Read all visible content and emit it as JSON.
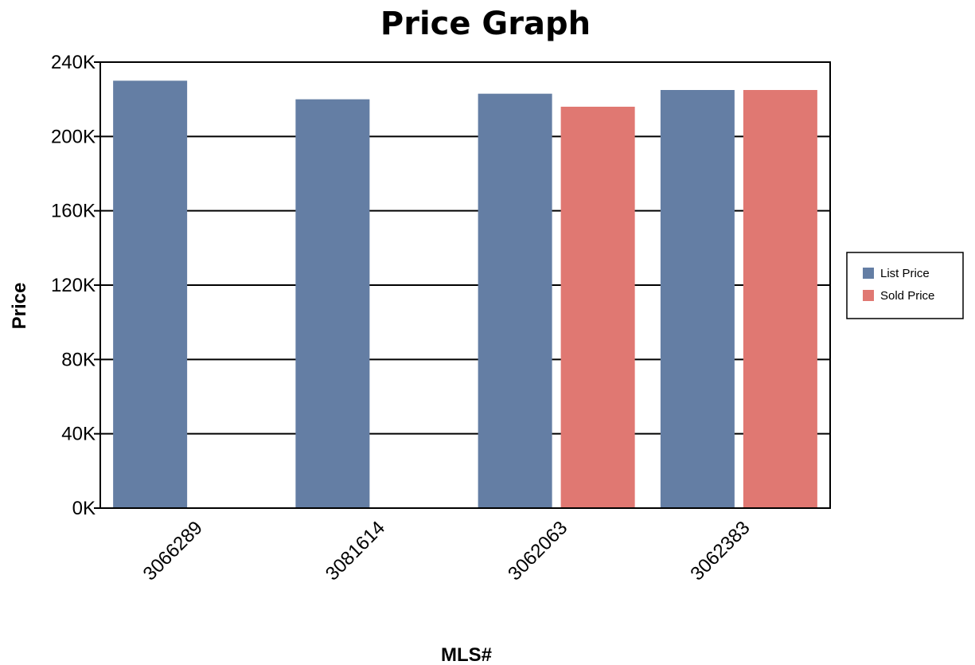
{
  "chart_data": {
    "type": "bar",
    "title": "Price Graph",
    "xlabel": "MLS#",
    "ylabel": "Price",
    "categories": [
      "3066289",
      "3081614",
      "3062063",
      "3062383"
    ],
    "series": [
      {
        "name": "List Price",
        "color": "#647ea4",
        "values": [
          230000,
          220000,
          223000,
          225000
        ]
      },
      {
        "name": "Sold Price",
        "color": "#e07872",
        "values": [
          null,
          null,
          216000,
          225000
        ]
      }
    ],
    "ylim": [
      0,
      240000
    ],
    "yticks": [
      "0K",
      "40K",
      "80K",
      "120K",
      "160K",
      "200K",
      "240K"
    ],
    "grid": true,
    "legend_position": "right"
  }
}
